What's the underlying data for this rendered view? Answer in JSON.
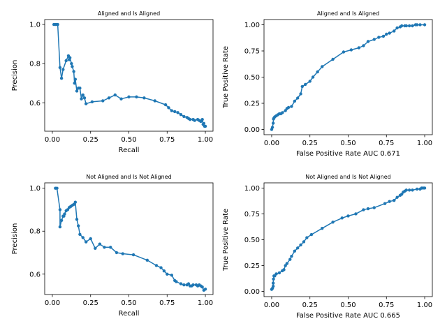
{
  "style": {
    "line_color": "#1f77b4",
    "marker": "circle"
  },
  "chart_data": [
    {
      "type": "line",
      "title": "Aligned and Is Aligned",
      "xlabel": "Recall",
      "ylabel": "Precision",
      "xlim": [
        -0.05,
        1.05
      ],
      "ylim": [
        0.455,
        1.025
      ],
      "xticks": [
        0.0,
        0.25,
        0.5,
        0.75,
        1.0
      ],
      "xtick_labels": [
        "0.00",
        "0.25",
        "0.50",
        "0.75",
        "1.00"
      ],
      "yticks": [
        0.6,
        0.8,
        1.0
      ],
      "ytick_labels": [
        "0.6",
        "0.8",
        "1.0"
      ],
      "series": [
        {
          "x": [
            0.01,
            0.02,
            0.03,
            0.035,
            0.05,
            0.06,
            0.07,
            0.09,
            0.105,
            0.11,
            0.115,
            0.125,
            0.13,
            0.14,
            0.145,
            0.15,
            0.16,
            0.17,
            0.18,
            0.19,
            0.2,
            0.21,
            0.22,
            0.26,
            0.33,
            0.37,
            0.41,
            0.45,
            0.5,
            0.55,
            0.6,
            0.67,
            0.74,
            0.76,
            0.78,
            0.8,
            0.82,
            0.84,
            0.86,
            0.88,
            0.89,
            0.9,
            0.92,
            0.93,
            0.95,
            0.96,
            0.97,
            0.98,
            0.985,
            0.99,
            0.995,
            1.0
          ],
          "y": [
            1.0,
            1.0,
            1.0,
            1.0,
            0.78,
            0.725,
            0.77,
            0.815,
            0.84,
            0.82,
            0.83,
            0.8,
            0.785,
            0.76,
            0.7,
            0.72,
            0.66,
            0.675,
            0.675,
            0.62,
            0.64,
            0.625,
            0.595,
            0.605,
            0.61,
            0.625,
            0.64,
            0.62,
            0.63,
            0.63,
            0.625,
            0.61,
            0.59,
            0.575,
            0.56,
            0.555,
            0.55,
            0.54,
            0.53,
            0.525,
            0.52,
            0.515,
            0.515,
            0.51,
            0.515,
            0.51,
            0.505,
            0.515,
            0.49,
            0.495,
            0.48,
            0.48
          ]
        }
      ]
    },
    {
      "type": "line",
      "title": "Aligned and Is Aligned",
      "xlabel": "False Positive Rate AUC 0.671",
      "ylabel": "True Positive Rate",
      "xlim": [
        -0.05,
        1.05
      ],
      "ylim": [
        -0.05,
        1.05
      ],
      "xticks": [
        0.0,
        0.25,
        0.5,
        0.75,
        1.0
      ],
      "xtick_labels": [
        "0.00",
        "0.25",
        "0.50",
        "0.75",
        "1.00"
      ],
      "yticks": [
        0.0,
        0.25,
        0.5,
        0.75,
        1.0
      ],
      "ytick_labels": [
        "0.00",
        "0.25",
        "0.50",
        "0.75",
        "1.00"
      ],
      "series": [
        {
          "x": [
            0.0,
            0.005,
            0.01,
            0.012,
            0.015,
            0.02,
            0.03,
            0.04,
            0.05,
            0.06,
            0.07,
            0.09,
            0.1,
            0.11,
            0.13,
            0.15,
            0.17,
            0.19,
            0.2,
            0.22,
            0.25,
            0.27,
            0.3,
            0.33,
            0.4,
            0.47,
            0.52,
            0.57,
            0.6,
            0.63,
            0.67,
            0.7,
            0.73,
            0.75,
            0.77,
            0.8,
            0.82,
            0.84,
            0.85,
            0.87,
            0.88,
            0.9,
            0.92,
            0.94,
            0.95,
            0.97,
            1.0
          ],
          "y": [
            0.0,
            0.02,
            0.06,
            0.1,
            0.11,
            0.12,
            0.13,
            0.14,
            0.15,
            0.15,
            0.16,
            0.18,
            0.2,
            0.21,
            0.22,
            0.27,
            0.3,
            0.34,
            0.41,
            0.43,
            0.46,
            0.5,
            0.55,
            0.6,
            0.67,
            0.74,
            0.76,
            0.78,
            0.8,
            0.84,
            0.86,
            0.88,
            0.89,
            0.91,
            0.92,
            0.94,
            0.97,
            0.98,
            0.99,
            0.99,
            0.99,
            0.99,
            0.99,
            1.0,
            1.0,
            1.0,
            1.0
          ]
        }
      ]
    },
    {
      "type": "line",
      "title": "Not Aligned and Is Not Aligned",
      "xlabel": "Recall",
      "ylabel": "Precision",
      "xlim": [
        -0.05,
        1.05
      ],
      "ylim": [
        0.505,
        1.025
      ],
      "xticks": [
        0.0,
        0.25,
        0.5,
        0.75,
        1.0
      ],
      "xtick_labels": [
        "0.00",
        "0.25",
        "0.50",
        "0.75",
        "1.00"
      ],
      "yticks": [
        0.6,
        0.8,
        1.0
      ],
      "ytick_labels": [
        "0.6",
        "0.8",
        "1.0"
      ],
      "series": [
        {
          "x": [
            0.02,
            0.03,
            0.05,
            0.05,
            0.06,
            0.07,
            0.075,
            0.08,
            0.09,
            0.1,
            0.11,
            0.12,
            0.13,
            0.14,
            0.15,
            0.16,
            0.17,
            0.18,
            0.2,
            0.22,
            0.25,
            0.28,
            0.31,
            0.34,
            0.38,
            0.42,
            0.46,
            0.53,
            0.62,
            0.68,
            0.71,
            0.73,
            0.75,
            0.78,
            0.8,
            0.81,
            0.84,
            0.86,
            0.88,
            0.89,
            0.9,
            0.91,
            0.92,
            0.94,
            0.95,
            0.96,
            0.97,
            0.98,
            0.99,
            1.0
          ],
          "y": [
            1.0,
            1.0,
            0.9,
            0.82,
            0.85,
            0.87,
            0.87,
            0.88,
            0.895,
            0.9,
            0.91,
            0.915,
            0.92,
            0.925,
            0.935,
            0.855,
            0.825,
            0.785,
            0.77,
            0.75,
            0.765,
            0.72,
            0.74,
            0.725,
            0.725,
            0.7,
            0.695,
            0.69,
            0.665,
            0.64,
            0.63,
            0.615,
            0.6,
            0.595,
            0.57,
            0.565,
            0.555,
            0.55,
            0.55,
            0.555,
            0.545,
            0.545,
            0.55,
            0.55,
            0.545,
            0.55,
            0.545,
            0.54,
            0.525,
            0.53
          ]
        }
      ]
    },
    {
      "type": "line",
      "title": "Not Aligned and Is Not Aligned",
      "xlabel": "False Positive Rate AUC 0.665",
      "ylabel": "True Positive Rate",
      "xlim": [
        -0.05,
        1.05
      ],
      "ylim": [
        -0.05,
        1.05
      ],
      "xticks": [
        0.0,
        0.25,
        0.5,
        0.75,
        1.0
      ],
      "xtick_labels": [
        "0.00",
        "0.25",
        "0.50",
        "0.75",
        "1.00"
      ],
      "yticks": [
        0.0,
        0.25,
        0.5,
        0.75,
        1.0
      ],
      "ytick_labels": [
        "0.00",
        "0.25",
        "0.50",
        "0.75",
        "1.00"
      ],
      "series": [
        {
          "x": [
            0.0,
            0.005,
            0.01,
            0.01,
            0.012,
            0.015,
            0.02,
            0.03,
            0.05,
            0.07,
            0.08,
            0.09,
            0.1,
            0.12,
            0.13,
            0.15,
            0.17,
            0.19,
            0.21,
            0.23,
            0.26,
            0.33,
            0.4,
            0.46,
            0.5,
            0.55,
            0.6,
            0.63,
            0.67,
            0.74,
            0.77,
            0.8,
            0.82,
            0.84,
            0.85,
            0.86,
            0.87,
            0.88,
            0.9,
            0.92,
            0.95,
            0.97,
            0.98,
            0.99,
            1.0
          ],
          "y": [
            0.02,
            0.03,
            0.05,
            0.08,
            0.12,
            0.15,
            0.15,
            0.17,
            0.18,
            0.2,
            0.21,
            0.25,
            0.27,
            0.31,
            0.34,
            0.39,
            0.42,
            0.45,
            0.48,
            0.52,
            0.55,
            0.61,
            0.67,
            0.71,
            0.73,
            0.75,
            0.79,
            0.8,
            0.81,
            0.85,
            0.87,
            0.88,
            0.91,
            0.93,
            0.94,
            0.96,
            0.97,
            0.98,
            0.98,
            0.98,
            0.99,
            0.99,
            1.0,
            1.0,
            1.0
          ]
        }
      ]
    }
  ]
}
